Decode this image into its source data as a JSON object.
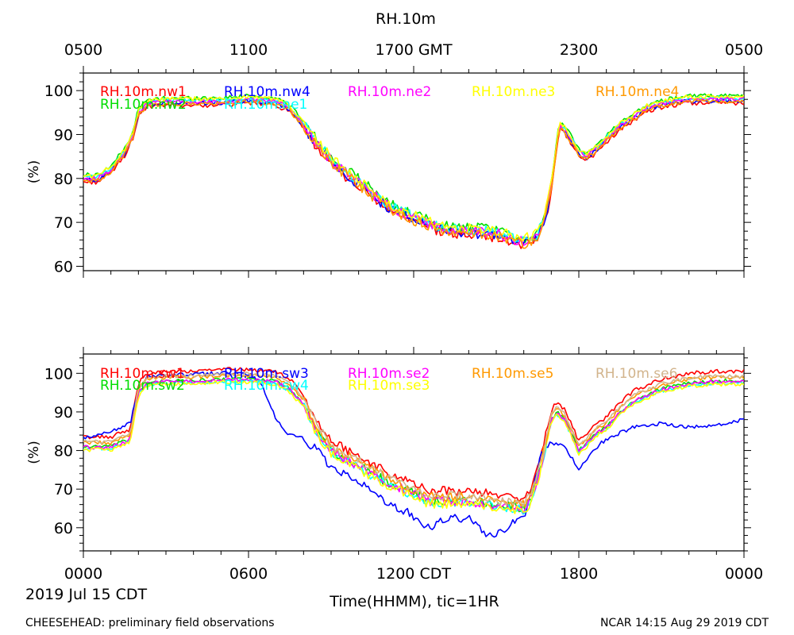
{
  "chart_data": {
    "type": "line",
    "title": "RH.10m",
    "xlabel": "Time(HHMM), tic=1HR",
    "date_label": "2019 Jul 15 CDT",
    "footer_left": "CHEESEHEAD: preliminary field observations",
    "footer_right": "NCAR 14:15 Aug 29 2019 CDT",
    "x_range_hours": [
      0,
      24
    ],
    "top_axis_ticks": [
      {
        "hour": 0,
        "label": "0500"
      },
      {
        "hour": 6,
        "label": "1100"
      },
      {
        "hour": 12,
        "label": "1700 GMT"
      },
      {
        "hour": 18,
        "label": "2300"
      },
      {
        "hour": 24,
        "label": "0500"
      }
    ],
    "bottom_axis_ticks": [
      {
        "hour": 0,
        "label": "0000"
      },
      {
        "hour": 6,
        "label": "0600"
      },
      {
        "hour": 12,
        "label": "1200 CDT"
      },
      {
        "hour": 18,
        "label": "1800"
      },
      {
        "hour": 24,
        "label": "0000"
      }
    ],
    "panels": [
      {
        "id": "top",
        "ylabel": "(%)",
        "ylim": [
          59,
          104
        ],
        "yticks": [
          60,
          70,
          80,
          90,
          100
        ],
        "series": [
          {
            "name": "RH.10m.nw1",
            "color": "#ff0000",
            "shape": "a",
            "offset": -0.8
          },
          {
            "name": "RH.10m.nw2",
            "color": "#00dd00",
            "shape": "a",
            "offset": 0.8
          },
          {
            "name": "RH.10m.nw4",
            "color": "#0000ff",
            "shape": "a",
            "offset": -0.3
          },
          {
            "name": "RH.10m.ne1",
            "color": "#00ffff",
            "shape": "a",
            "offset": 0.3
          },
          {
            "name": "RH.10m.ne2",
            "color": "#ff00ff",
            "shape": "a",
            "offset": 0.0
          },
          {
            "name": "RH.10m.ne3",
            "color": "#ffff00",
            "shape": "a",
            "offset": 0.6
          },
          {
            "name": "RH.10m.ne4",
            "color": "#ff9900",
            "shape": "a",
            "offset": -0.5
          }
        ]
      },
      {
        "id": "bottom",
        "ylabel": "(%)",
        "ylim": [
          54,
          105
        ],
        "yticks": [
          60,
          70,
          80,
          90,
          100
        ],
        "series": [
          {
            "name": "RH.10m.sw1",
            "color": "#ff0000",
            "shape": "b",
            "offset": 2.5
          },
          {
            "name": "RH.10m.sw2",
            "color": "#00dd00",
            "shape": "b",
            "offset": 0.0
          },
          {
            "name": "RH.10m.sw3",
            "color": "#0000ff",
            "shape": "c",
            "offset": 0.0
          },
          {
            "name": "RH.10m.sw4",
            "color": "#00ffff",
            "shape": "b",
            "offset": -0.5
          },
          {
            "name": "RH.10m.se2",
            "color": "#ff00ff",
            "shape": "b",
            "offset": -0.2
          },
          {
            "name": "RH.10m.se3",
            "color": "#ffff00",
            "shape": "b",
            "offset": -0.8
          },
          {
            "name": "RH.10m.se5",
            "color": "#ff9900",
            "shape": "b",
            "offset": 1.0
          },
          {
            "name": "RH.10m.se6",
            "color": "#d2b48c",
            "shape": "b",
            "offset": 1.3
          }
        ]
      }
    ],
    "profiles": {
      "a": [
        [
          0,
          80
        ],
        [
          0.5,
          80
        ],
        [
          1,
          82
        ],
        [
          1.5,
          86
        ],
        [
          1.8,
          90
        ],
        [
          2,
          95
        ],
        [
          2.3,
          97
        ],
        [
          3,
          97.5
        ],
        [
          4,
          97.5
        ],
        [
          5,
          97.5
        ],
        [
          6,
          98
        ],
        [
          7,
          97.5
        ],
        [
          7.5,
          96
        ],
        [
          8.5,
          88
        ],
        [
          9,
          84
        ],
        [
          10,
          79
        ],
        [
          11,
          74
        ],
        [
          12,
          71
        ],
        [
          13,
          68.5
        ],
        [
          14,
          68
        ],
        [
          15,
          67.5
        ],
        [
          15.5,
          66.5
        ],
        [
          16,
          65.5
        ],
        [
          16.5,
          67
        ],
        [
          16.8,
          72
        ],
        [
          17,
          78
        ],
        [
          17.2,
          88
        ],
        [
          17.3,
          92
        ],
        [
          17.5,
          91
        ],
        [
          18,
          86
        ],
        [
          18.3,
          85
        ],
        [
          18.7,
          87
        ],
        [
          19,
          89
        ],
        [
          19.5,
          92
        ],
        [
          20,
          94
        ],
        [
          20.5,
          96
        ],
        [
          21,
          97
        ],
        [
          22,
          98
        ],
        [
          23,
          98
        ],
        [
          24,
          98
        ]
      ],
      "b": [
        [
          0,
          81
        ],
        [
          1,
          81
        ],
        [
          1.7,
          83
        ],
        [
          2,
          95
        ],
        [
          2.3,
          97.5
        ],
        [
          3,
          98
        ],
        [
          4,
          98
        ],
        [
          5,
          98.5
        ],
        [
          6,
          98.5
        ],
        [
          7,
          98
        ],
        [
          7.5,
          96
        ],
        [
          8,
          92
        ],
        [
          8.5,
          85
        ],
        [
          9,
          80
        ],
        [
          10,
          76
        ],
        [
          11,
          72
        ],
        [
          12,
          69
        ],
        [
          12.5,
          67
        ],
        [
          13,
          67
        ],
        [
          14,
          67
        ],
        [
          15,
          66
        ],
        [
          16,
          65
        ],
        [
          16.3,
          68
        ],
        [
          16.7,
          78
        ],
        [
          17,
          88
        ],
        [
          17.2,
          90
        ],
        [
          17.5,
          88
        ],
        [
          18,
          80
        ],
        [
          18.3,
          82
        ],
        [
          18.7,
          85
        ],
        [
          19,
          86
        ],
        [
          19.5,
          90
        ],
        [
          20,
          93
        ],
        [
          21,
          96
        ],
        [
          22,
          97.5
        ],
        [
          23,
          98
        ],
        [
          24,
          98
        ]
      ],
      "c": [
        [
          0,
          83
        ],
        [
          1,
          85
        ],
        [
          1.7,
          87
        ],
        [
          2,
          96
        ],
        [
          2.3,
          99
        ],
        [
          3,
          99.5
        ],
        [
          5,
          100
        ],
        [
          6,
          100
        ],
        [
          6.5,
          97
        ],
        [
          7,
          88
        ],
        [
          7.5,
          84
        ],
        [
          8,
          83
        ],
        [
          8.5,
          80
        ],
        [
          9,
          75
        ],
        [
          10,
          72
        ],
        [
          11,
          67
        ],
        [
          12,
          63
        ],
        [
          12.5,
          60
        ],
        [
          13,
          61.5
        ],
        [
          14,
          63
        ],
        [
          14.5,
          59
        ],
        [
          15,
          58
        ],
        [
          15.5,
          61
        ],
        [
          16,
          63
        ],
        [
          16.3,
          70
        ],
        [
          16.7,
          80
        ],
        [
          17,
          82
        ],
        [
          17.5,
          81
        ],
        [
          18,
          75
        ],
        [
          18.5,
          80
        ],
        [
          19,
          83
        ],
        [
          20,
          86
        ],
        [
          21,
          87
        ],
        [
          22,
          86
        ],
        [
          23,
          86.5
        ],
        [
          24,
          88
        ]
      ]
    }
  }
}
